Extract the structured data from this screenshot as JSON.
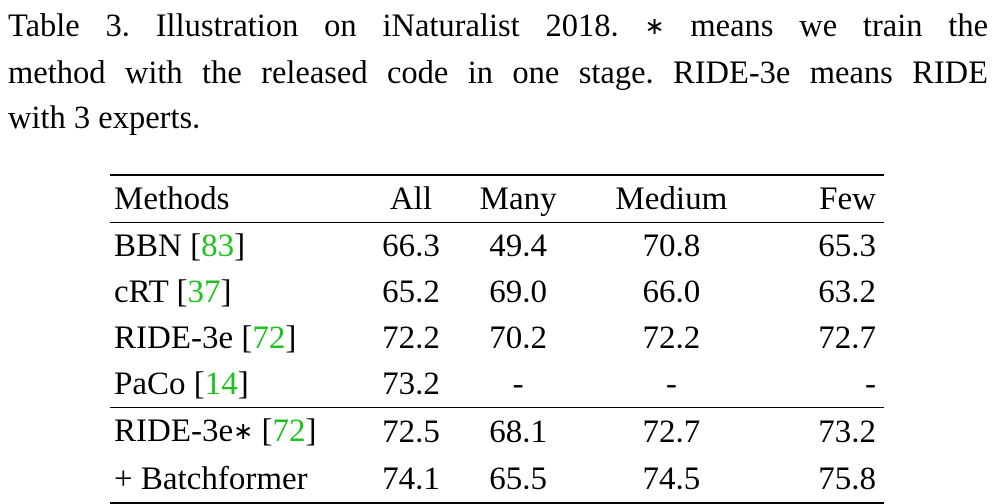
{
  "caption": {
    "line1_pre": "Table 3.  Illustration on iNaturalist 2018.",
    "asterisk": "∗",
    "line1_post": "means we train the",
    "line2": "method with the released code in one stage. RIDE-3e means RIDE",
    "line3": "with 3 experts."
  },
  "table": {
    "headers": [
      "Methods",
      "All",
      "Many",
      "Medium",
      "Few"
    ],
    "rows": [
      {
        "method": "BBN ",
        "cite": "83",
        "all": "66.3",
        "many": "49.4",
        "medium": "70.8",
        "few": "65.3"
      },
      {
        "method": "cRT ",
        "cite": "37",
        "all": "65.2",
        "many": "69.0",
        "medium": "66.0",
        "few": "63.2"
      },
      {
        "method": "RIDE-3e ",
        "cite": "72",
        "all": "72.2",
        "many": "70.2",
        "medium": "72.2",
        "few": "72.7"
      },
      {
        "method": "PaCo ",
        "cite": "14",
        "all": "73.2",
        "many": "-",
        "medium": "-",
        "few": "-"
      },
      {
        "method": "RIDE-3e∗ ",
        "cite": "72",
        "all": "72.5",
        "many": "68.1",
        "medium": "72.7",
        "few": "73.2"
      },
      {
        "method": "+ Batchformer",
        "all": "74.1",
        "many": "65.5",
        "medium": "74.5",
        "few": "75.8"
      }
    ],
    "cite_color": "#1ec21e"
  }
}
